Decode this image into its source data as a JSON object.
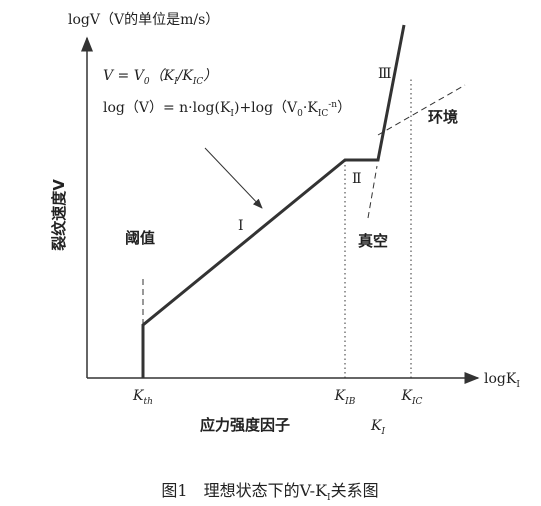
{
  "y_axis_label": [
    {
      "text": "logV（V的单位是m/s）"
    }
  ],
  "y_axis_title": "裂纹速度V",
  "formula_1": [
    {
      "text": "V = V"
    },
    {
      "sub": "0"
    },
    {
      "text": "（K"
    },
    {
      "sub": "I"
    },
    {
      "text": "/K"
    },
    {
      "sub": "IC"
    },
    {
      "text": "）"
    }
  ],
  "formula_2": [
    {
      "text": "log（V）= n·log(K"
    },
    {
      "sub": "I"
    },
    {
      "text": ")+log（V"
    },
    {
      "sub": "0"
    },
    {
      "text": "·K"
    },
    {
      "sub": "IC"
    },
    {
      "sup": "-n"
    },
    {
      "text": "）"
    }
  ],
  "region_labels": {
    "stage_1": "Ⅰ",
    "stage_2": "Ⅱ",
    "stage_3": "Ⅲ",
    "threshold": "阈值",
    "vacuum": "真空",
    "environment": "环境"
  },
  "x_ticks": {
    "k_th": [
      {
        "text": "K"
      },
      {
        "sub": "th"
      }
    ],
    "k_ib": [
      {
        "text": "K"
      },
      {
        "sub": "IB"
      }
    ],
    "k_ic": [
      {
        "text": "K"
      },
      {
        "sub": "IC"
      }
    ]
  },
  "x_axis_label": [
    {
      "text": "logK"
    },
    {
      "sub": "I"
    }
  ],
  "x_axis_title": "应力强度因子",
  "x_axis_subtitle": [
    {
      "text": "K"
    },
    {
      "sub": "I"
    }
  ],
  "caption": [
    {
      "text": "图1　理想状态下的V-K"
    },
    {
      "sub": "I"
    },
    {
      "text": "关系图"
    }
  ]
}
